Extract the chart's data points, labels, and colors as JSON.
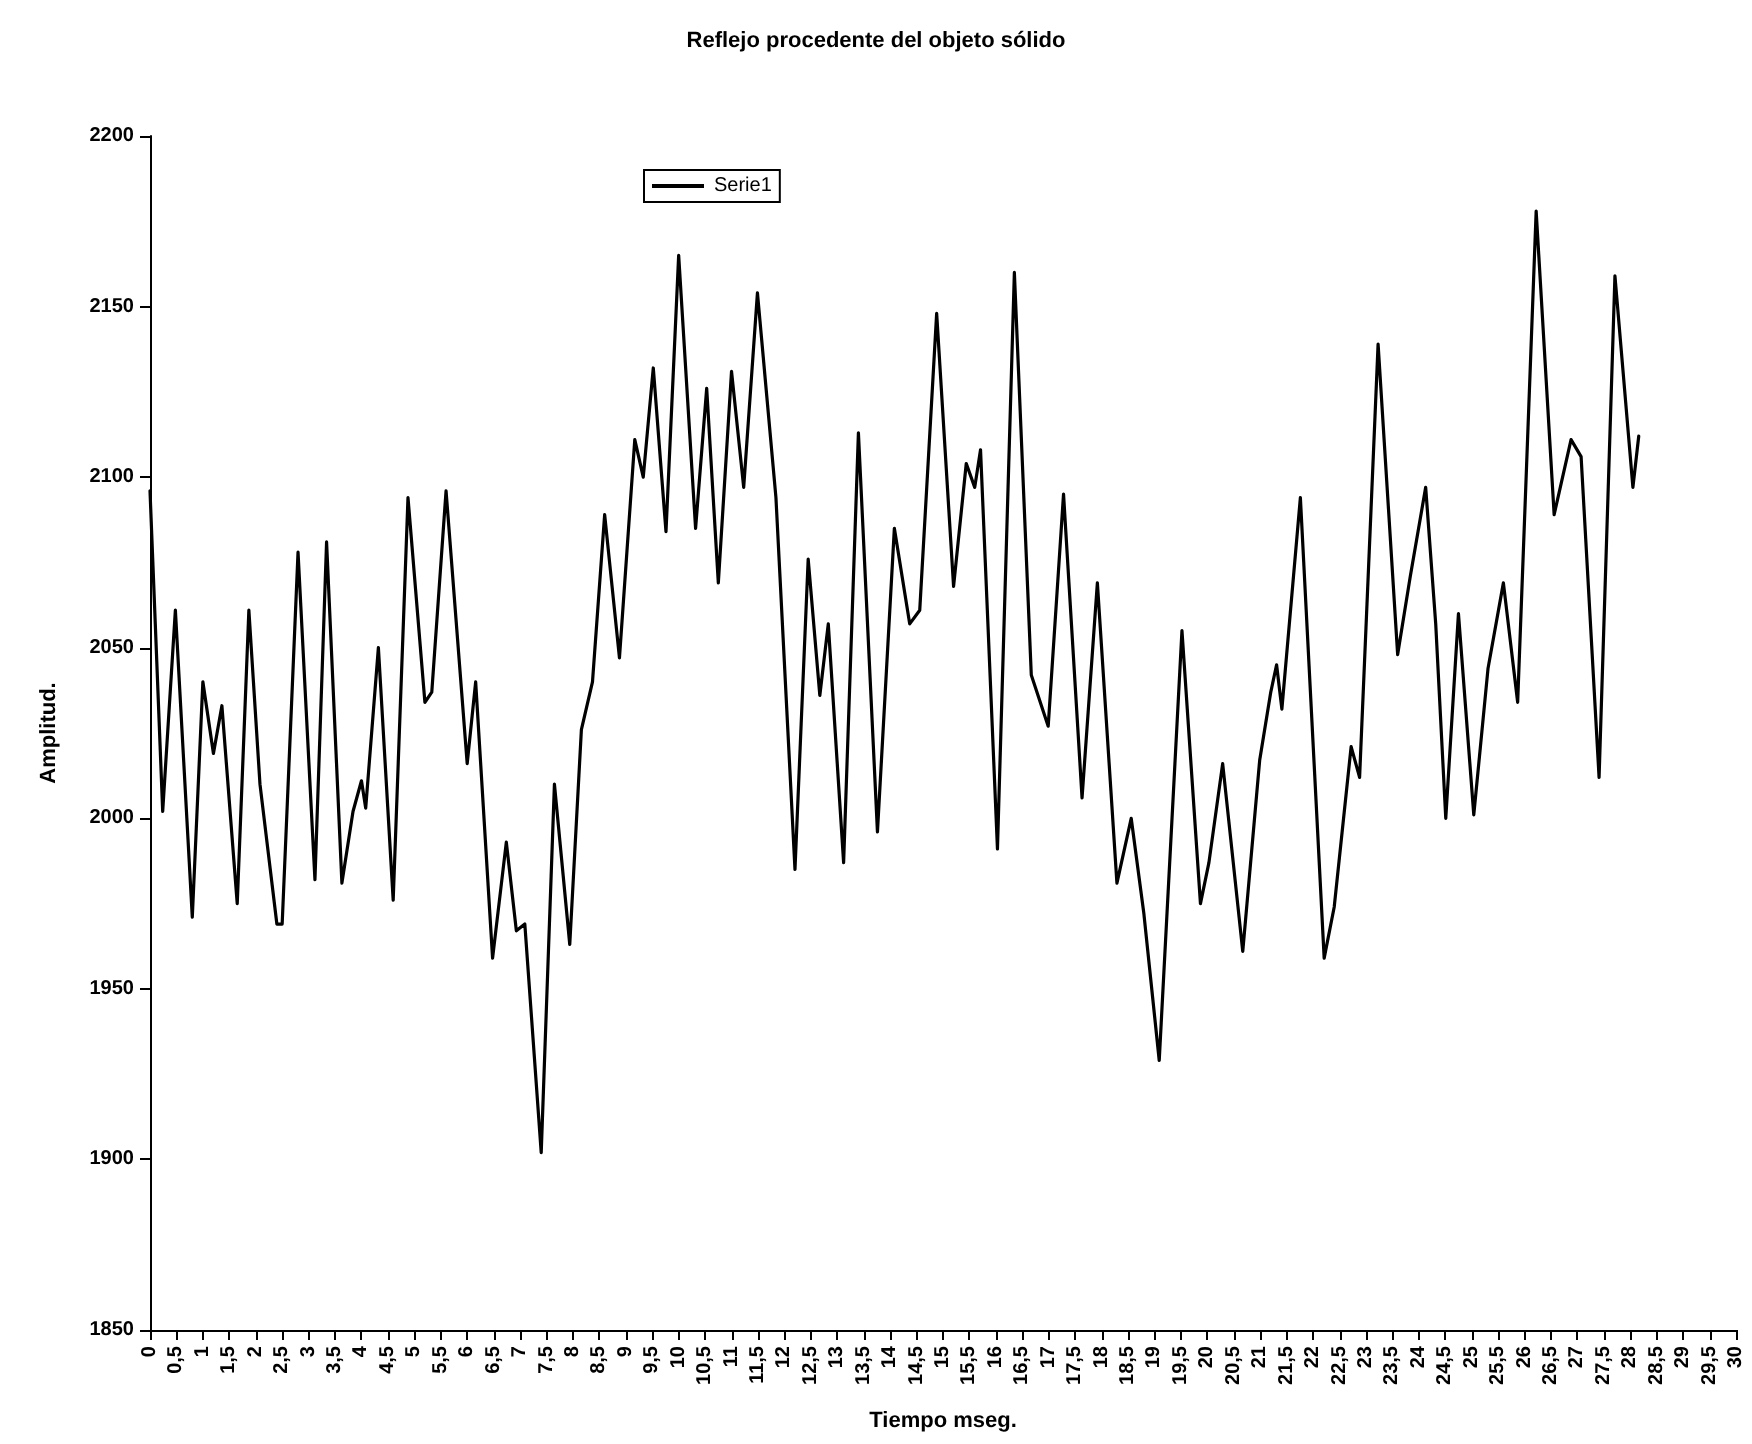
{
  "chart_data": {
    "type": "line",
    "title": "Reflejo procedente del objeto sólido",
    "xlabel": "Tiempo mseg.",
    "ylabel": "Amplitud.",
    "series": [
      {
        "name": "Serie1",
        "color": "#000000",
        "x": [
          0,
          0.1,
          0.24,
          0.48,
          0.8,
          1.0,
          1.2,
          1.36,
          1.65,
          1.87,
          2.08,
          2.4,
          2.5,
          2.8,
          3.12,
          3.34,
          3.63,
          3.84,
          4.0,
          4.08,
          4.32,
          4.6,
          4.88,
          5.2,
          5.33,
          5.6,
          6.0,
          6.16,
          6.48,
          6.74,
          6.93,
          7.09,
          7.4,
          7.65,
          7.94,
          8.16,
          8.37,
          8.6,
          8.88,
          9.17,
          9.33,
          9.52,
          9.76,
          10.0,
          10.32,
          10.53,
          10.75,
          11.0,
          11.23,
          11.49,
          11.84,
          12.2,
          12.45,
          12.67,
          12.83,
          13.12,
          13.4,
          13.76,
          14.08,
          14.37,
          14.56,
          14.88,
          15.2,
          15.44,
          15.6,
          15.71,
          16.03,
          16.35,
          16.67,
          16.99,
          17.28,
          17.63,
          17.92,
          18.29,
          18.56,
          18.8,
          19.09,
          19.52,
          19.87,
          20.03,
          20.29,
          20.67,
          20.99,
          21.2,
          21.31,
          21.41,
          21.76,
          22.21,
          22.4,
          22.72,
          22.88,
          23.23,
          23.6,
          23.84,
          24.13,
          24.32,
          24.51,
          24.75,
          25.04,
          25.31,
          25.6,
          25.87,
          26.22,
          26.56,
          26.88,
          27.07,
          27.41,
          27.71,
          28.05,
          28.16
        ],
        "values": [
          2096,
          2057,
          2002,
          2061,
          1971,
          2040,
          2019,
          2033,
          1975,
          2061,
          2010,
          1969,
          1969,
          2078,
          1982,
          2081,
          1981,
          2002,
          2011,
          2003,
          2050,
          1976,
          2094,
          2034,
          2037,
          2096,
          2016,
          2040,
          1959,
          1993,
          1967,
          1969,
          1902,
          2010,
          1963,
          2026,
          2040,
          2089,
          2047,
          2111,
          2100,
          2132,
          2084,
          2165,
          2085,
          2126,
          2069,
          2131,
          2097,
          2154,
          2094,
          1985,
          2076,
          2036,
          2057,
          1987,
          2113,
          1996,
          2085,
          2057,
          2061,
          2148,
          2068,
          2104,
          2097,
          2108,
          1991,
          2160,
          2042,
          2027,
          2095,
          2006,
          2069,
          1981,
          2000,
          1972,
          1929,
          2055,
          1975,
          1987,
          2016,
          1961,
          2017,
          2037,
          2045,
          2032,
          2094,
          1959,
          1974,
          2021,
          2012,
          2139,
          2048,
          2071,
          2097,
          2057,
          2000,
          2060,
          2001,
          2044,
          2069,
          2034,
          2178,
          2089,
          2111,
          2106,
          2012,
          2159,
          2097,
          2112
        ]
      }
    ],
    "xlim": [
      0,
      30
    ],
    "xticks": [
      0,
      {
        "value": 0.5,
        "label": "0,5"
      },
      1,
      {
        "value": 1.5,
        "label": "1,5"
      },
      2,
      {
        "value": 2.5,
        "label": "2,5"
      },
      3,
      {
        "value": 3.5,
        "label": "3,5"
      },
      4,
      {
        "value": 4.5,
        "label": "4,5"
      },
      5,
      {
        "value": 5.5,
        "label": "5,5"
      },
      6,
      {
        "value": 6.5,
        "label": "6,5"
      },
      7,
      {
        "value": 7.5,
        "label": "7,5"
      },
      8,
      {
        "value": 8.5,
        "label": "8,5"
      },
      9,
      {
        "value": 9.5,
        "label": "9,5"
      },
      10,
      {
        "value": 10.5,
        "label": "10,5"
      },
      11,
      {
        "value": 11.5,
        "label": "11,5"
      },
      12,
      {
        "value": 12.5,
        "label": "12,5"
      },
      13,
      {
        "value": 13.5,
        "label": "13,5"
      },
      14,
      {
        "value": 14.5,
        "label": "14,5"
      },
      15,
      {
        "value": 15.5,
        "label": "15,5"
      },
      16,
      {
        "value": 16.5,
        "label": "16,5"
      },
      17,
      {
        "value": 17.5,
        "label": "17,5"
      },
      18,
      {
        "value": 18.5,
        "label": "18,5"
      },
      19,
      {
        "value": 19.5,
        "label": "19,5"
      },
      20,
      {
        "value": 20.5,
        "label": "20,5"
      },
      21,
      {
        "value": 21.5,
        "label": "21,5"
      },
      22,
      {
        "value": 22.5,
        "label": "22,5"
      },
      23,
      {
        "value": 23.5,
        "label": "23,5"
      },
      24,
      {
        "value": 24.5,
        "label": "24,5"
      },
      25,
      {
        "value": 25.5,
        "label": "25,5"
      },
      26,
      {
        "value": 26.5,
        "label": "26,5"
      },
      27,
      {
        "value": 27.5,
        "label": "27,5"
      },
      28,
      {
        "value": 28.5,
        "label": "28,5"
      },
      29,
      {
        "value": 29.5,
        "label": "29,5"
      },
      30
    ],
    "ylim": [
      1850,
      2200
    ],
    "yticks": [
      1850,
      1900,
      1950,
      2000,
      2050,
      2100,
      2150,
      2200
    ],
    "grid": false,
    "legend": "top",
    "marker": "none",
    "line_style": "solid"
  }
}
